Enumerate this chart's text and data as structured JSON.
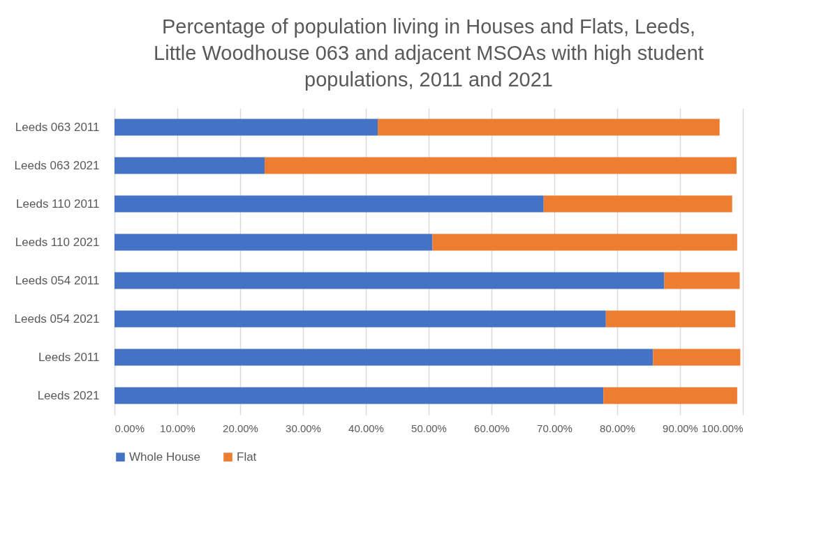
{
  "chart_data": {
    "type": "bar",
    "orientation": "horizontal",
    "stacked": true,
    "title": "Percentage of population living in Houses and Flats, Leeds, Little Woodhouse 063 and adjacent MSOAs with high student populations, 2011 and 2021",
    "categories": [
      "Leeds 063 2011",
      "Leeds 063 2021",
      "Leeds 110 2011",
      "Leeds 110 2021",
      "Leeds 054 2011",
      "Leeds 054 2021",
      "Leeds 2011",
      "Leeds 2021"
    ],
    "series": [
      {
        "name": "Whole House",
        "color": "#4472c4",
        "values": [
          41.9,
          23.9,
          68.3,
          50.6,
          87.5,
          78.2,
          85.7,
          77.8
        ]
      },
      {
        "name": "Flat",
        "color": "#ed7d31",
        "values": [
          54.4,
          75.1,
          30.0,
          48.5,
          12.0,
          20.6,
          13.9,
          21.3
        ]
      }
    ],
    "xlim": [
      0,
      100
    ],
    "xticks": [
      {
        "value": 0,
        "label": "0.00%"
      },
      {
        "value": 10,
        "label": "10.00%"
      },
      {
        "value": 20,
        "label": "20.00%"
      },
      {
        "value": 30,
        "label": "30.00%"
      },
      {
        "value": 40,
        "label": "40.00%"
      },
      {
        "value": 50,
        "label": "50.00%"
      },
      {
        "value": 60,
        "label": "60.00%"
      },
      {
        "value": 70,
        "label": "70.00%"
      },
      {
        "value": 80,
        "label": "80.00%"
      },
      {
        "value": 90,
        "label": "90.00%"
      },
      {
        "value": 100,
        "label": "100.00%"
      }
    ],
    "grid": "x",
    "legend": "bottom"
  }
}
